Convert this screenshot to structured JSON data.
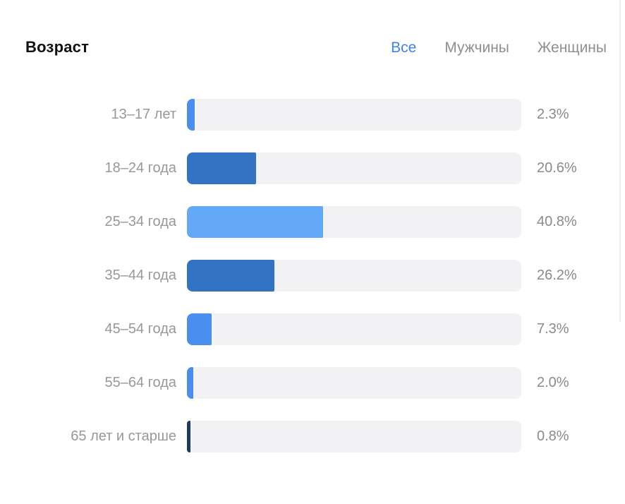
{
  "header": {
    "title": "Возраст"
  },
  "tabs": [
    {
      "label": "Все",
      "active": true
    },
    {
      "label": "Мужчины",
      "active": false
    },
    {
      "label": "Женщины",
      "active": false
    }
  ],
  "colors": {
    "active_tab": "#3e82f1",
    "inactive_tab": "#8e8e93",
    "title": "#121212",
    "label_text": "#97979c",
    "value_text": "#8a8a8e",
    "bar_track": "#f2f2f4",
    "divider": "#ececec",
    "bar_bright_blue": "#4a8ff0",
    "bar_medium_blue": "#3273c4",
    "bar_light_blue": "#64a9f7",
    "bar_dark_navy": "#1e3a63"
  },
  "chart_data": {
    "type": "bar",
    "orientation": "horizontal",
    "title": "Возраст",
    "xlabel": "",
    "ylabel": "",
    "xlim": [
      0,
      100
    ],
    "grid": false,
    "legend": false,
    "categories": [
      "13–17 лет",
      "18–24 года",
      "25–34 года",
      "35–44 года",
      "45–54 года",
      "55–64 года",
      "65 лет и старше"
    ],
    "values": [
      2.3,
      20.6,
      40.8,
      26.2,
      7.3,
      2.0,
      0.8
    ],
    "value_labels": [
      "2.3%",
      "20.6%",
      "40.8%",
      "26.2%",
      "7.3%",
      "2.0%",
      "0.8%"
    ],
    "bar_colors": [
      "#4a8ff0",
      "#3273c4",
      "#64a9f7",
      "#3273c4",
      "#4a8ff0",
      "#4a8ff0",
      "#1e3a63"
    ]
  }
}
